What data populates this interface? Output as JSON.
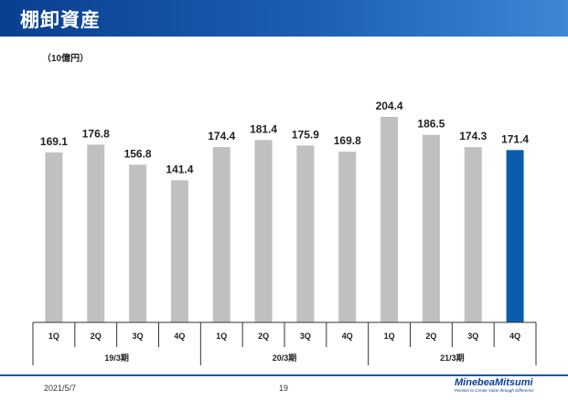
{
  "header": {
    "title": "棚卸資産"
  },
  "unit_label": "（10億円）",
  "footer": {
    "date": "2021/5/7",
    "page": "19",
    "logo": "MinebeaMitsumi",
    "tagline": "Passion to Create Value through Difference"
  },
  "colors": {
    "bar": "#c0c0c0",
    "highlight": "#0b5cab",
    "header": "#1a56b0"
  },
  "chart_data": {
    "type": "bar",
    "categories": [
      "1Q",
      "2Q",
      "3Q",
      "4Q",
      "1Q",
      "2Q",
      "3Q",
      "4Q",
      "1Q",
      "2Q",
      "3Q",
      "4Q"
    ],
    "groups": [
      {
        "label": "19/3期",
        "start": 0,
        "count": 4
      },
      {
        "label": "20/3期",
        "start": 4,
        "count": 4
      },
      {
        "label": "21/3期",
        "start": 8,
        "count": 4
      }
    ],
    "values": [
      169.1,
      176.8,
      156.8,
      141.4,
      174.4,
      181.4,
      175.9,
      169.8,
      204.4,
      186.5,
      174.3,
      171.4
    ],
    "labels": [
      "169.1",
      "176.8",
      "156.8",
      "141.4",
      "174.4",
      "181.4",
      "175.9",
      "169.8",
      "204.4",
      "186.5",
      "174.3",
      "171.4"
    ],
    "highlight_index": 11,
    "ylim": [
      0,
      204.4
    ],
    "grid": false
  }
}
